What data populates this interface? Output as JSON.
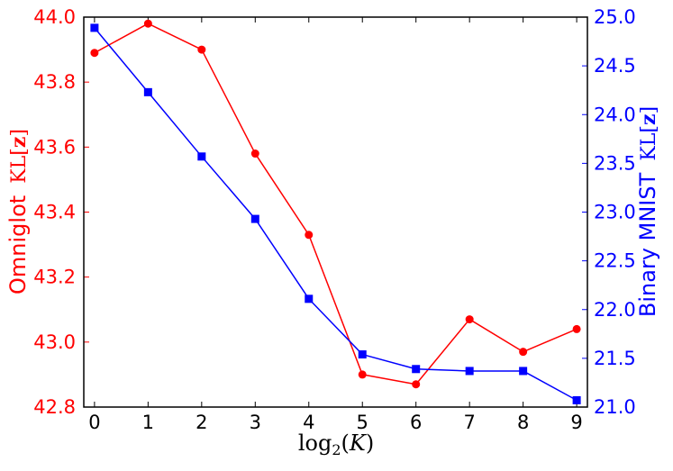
{
  "chart_data": {
    "type": "line",
    "title": "",
    "xlabel": "log2(K)",
    "ylabel_left": "Omniglot KL[z]",
    "ylabel_right": "Binary MNIST KL[z]",
    "x": [
      0,
      1,
      2,
      3,
      4,
      5,
      6,
      7,
      8,
      9
    ],
    "x_tick_labels": [
      "0",
      "1",
      "2",
      "3",
      "4",
      "5",
      "6",
      "7",
      "8",
      "9"
    ],
    "xlim": [
      -0.2,
      9.2
    ],
    "ylim_left": [
      42.8,
      44.0
    ],
    "ylim_right": [
      21.0,
      25.0
    ],
    "y_ticks_left": [
      "42.8",
      "43.0",
      "43.2",
      "43.4",
      "43.6",
      "43.8",
      "44.0"
    ],
    "y_ticks_right": [
      "21.0",
      "21.5",
      "22.0",
      "22.5",
      "23.0",
      "23.5",
      "24.0",
      "24.5",
      "25.0"
    ],
    "grid": false,
    "legend": "none",
    "series": [
      {
        "axis": "left",
        "color": "#ff0000",
        "marker": "circle",
        "values": [
          43.89,
          43.98,
          43.9,
          43.58,
          43.33,
          42.9,
          42.87,
          43.07,
          42.97,
          43.04
        ]
      },
      {
        "axis": "right",
        "color": "#0000ff",
        "marker": "square",
        "values": [
          24.89,
          24.23,
          23.57,
          22.93,
          22.11,
          21.54,
          21.39,
          21.37,
          21.37,
          21.07
        ]
      }
    ],
    "colors": {
      "left_axis": "#ff0000",
      "right_axis": "#0000ff",
      "frame": "#000000"
    }
  }
}
